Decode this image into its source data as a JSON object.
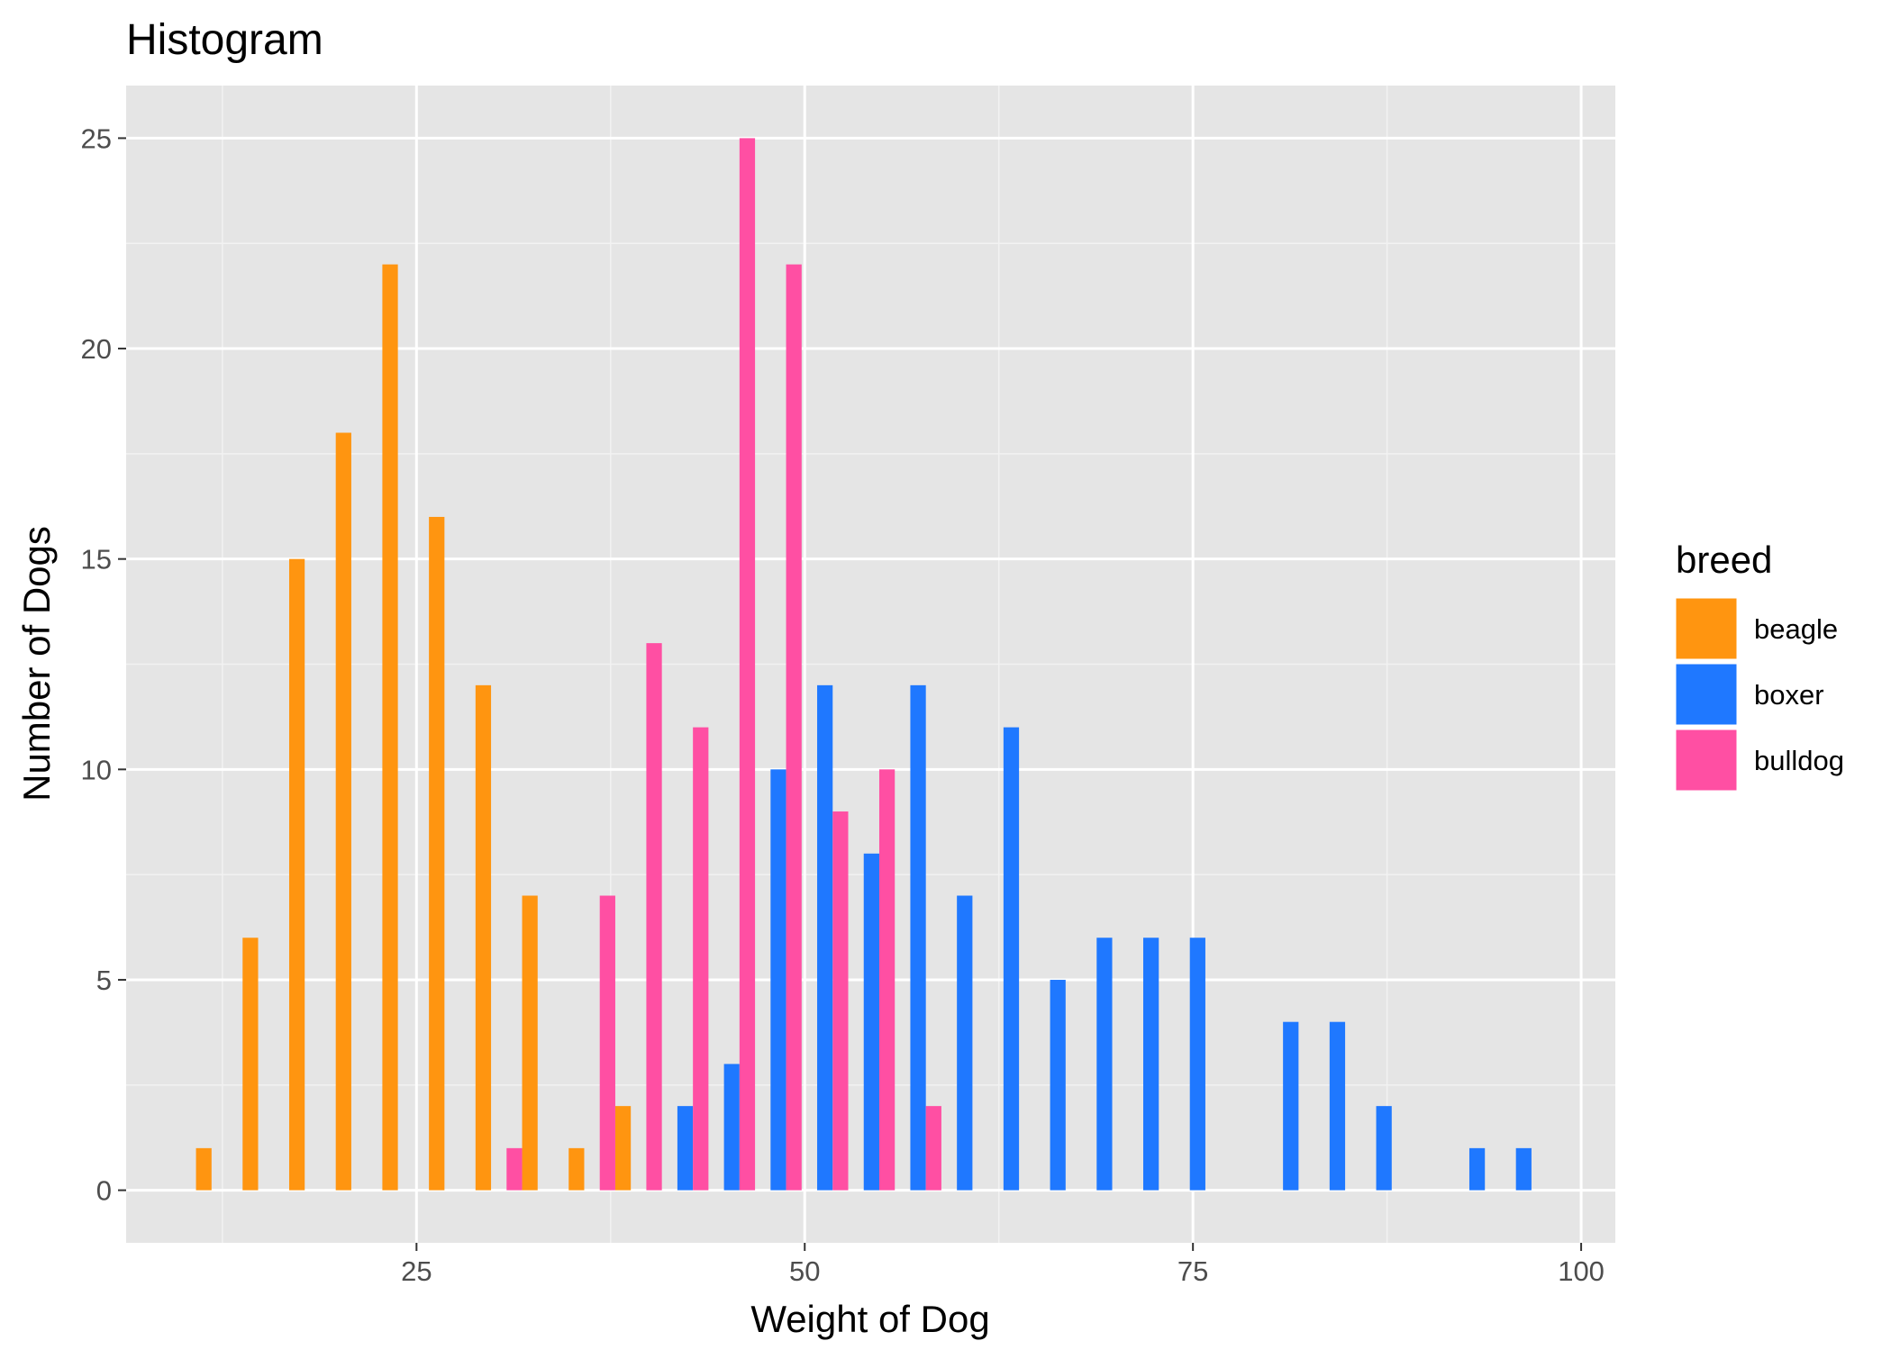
{
  "chart_data": {
    "type": "bar",
    "title": "Histogram",
    "xlabel": "Weight of Dog",
    "ylabel": "Number of Dogs",
    "xlim": [
      6.3,
      102.2
    ],
    "ylim": [
      -1.25,
      26.25
    ],
    "x_ticks": [
      "25",
      "50",
      "75",
      "100"
    ],
    "x_tick_values": [
      25,
      50,
      75,
      100
    ],
    "y_ticks": [
      "0",
      "5",
      "10",
      "15",
      "20",
      "25"
    ],
    "y_tick_values": [
      0,
      5,
      10,
      15,
      20,
      25
    ],
    "grid": true,
    "legend": {
      "title": "breed",
      "placement": "right"
    },
    "bin_width": 3.0,
    "series": [
      {
        "name": "beagle",
        "color": "#FF9510",
        "bins": [
          {
            "x": 11.3,
            "count": 1
          },
          {
            "x": 14.3,
            "count": 6
          },
          {
            "x": 17.3,
            "count": 15
          },
          {
            "x": 20.3,
            "count": 18
          },
          {
            "x": 23.3,
            "count": 22
          },
          {
            "x": 26.3,
            "count": 16
          },
          {
            "x": 29.3,
            "count": 12
          },
          {
            "x": 32.3,
            "count": 7
          },
          {
            "x": 35.3,
            "count": 1
          },
          {
            "x": 38.3,
            "count": 2
          }
        ]
      },
      {
        "name": "boxer",
        "color": "#1F78FF",
        "bins": [
          {
            "x": 42.3,
            "count": 2
          },
          {
            "x": 45.3,
            "count": 3
          },
          {
            "x": 48.3,
            "count": 10
          },
          {
            "x": 51.3,
            "count": 12
          },
          {
            "x": 54.3,
            "count": 8
          },
          {
            "x": 57.3,
            "count": 12
          },
          {
            "x": 60.3,
            "count": 7
          },
          {
            "x": 63.3,
            "count": 11
          },
          {
            "x": 66.3,
            "count": 5
          },
          {
            "x": 69.3,
            "count": 6
          },
          {
            "x": 72.3,
            "count": 6
          },
          {
            "x": 75.3,
            "count": 6
          },
          {
            "x": 81.3,
            "count": 4
          },
          {
            "x": 84.3,
            "count": 4
          },
          {
            "x": 87.3,
            "count": 2
          },
          {
            "x": 93.3,
            "count": 1
          },
          {
            "x": 96.3,
            "count": 1
          }
        ]
      },
      {
        "name": "bulldog",
        "color": "#FF4FA3",
        "bins": [
          {
            "x": 31.3,
            "count": 1
          },
          {
            "x": 37.3,
            "count": 7
          },
          {
            "x": 40.3,
            "count": 13
          },
          {
            "x": 43.3,
            "count": 11
          },
          {
            "x": 46.3,
            "count": 25
          },
          {
            "x": 49.3,
            "count": 22
          },
          {
            "x": 52.3,
            "count": 9
          },
          {
            "x": 55.3,
            "count": 10
          },
          {
            "x": 58.3,
            "count": 2
          }
        ]
      }
    ]
  }
}
